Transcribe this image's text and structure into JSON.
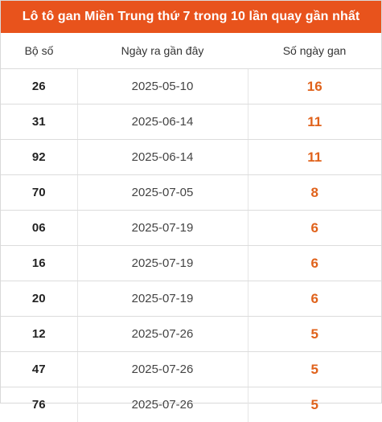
{
  "title": "Lô tô gan Miền Trung thứ 7 trong 10 lần quay gần nhất",
  "headers": {
    "number": "Bộ số",
    "last_date": "Ngày ra gần đây",
    "days_gap": "Số ngày gan"
  },
  "rows": [
    {
      "number": "26",
      "date": "2025-05-10",
      "gan": "16"
    },
    {
      "number": "31",
      "date": "2025-06-14",
      "gan": "11"
    },
    {
      "number": "92",
      "date": "2025-06-14",
      "gan": "11"
    },
    {
      "number": "70",
      "date": "2025-07-05",
      "gan": "8"
    },
    {
      "number": "06",
      "date": "2025-07-19",
      "gan": "6"
    },
    {
      "number": "16",
      "date": "2025-07-19",
      "gan": "6"
    },
    {
      "number": "20",
      "date": "2025-07-19",
      "gan": "6"
    },
    {
      "number": "12",
      "date": "2025-07-26",
      "gan": "5"
    },
    {
      "number": "47",
      "date": "2025-07-26",
      "gan": "5"
    },
    {
      "number": "76",
      "date": "2025-07-26",
      "gan": "5"
    }
  ],
  "colors": {
    "header_bg": "#e8531c",
    "gan_value": "#e0621b"
  }
}
